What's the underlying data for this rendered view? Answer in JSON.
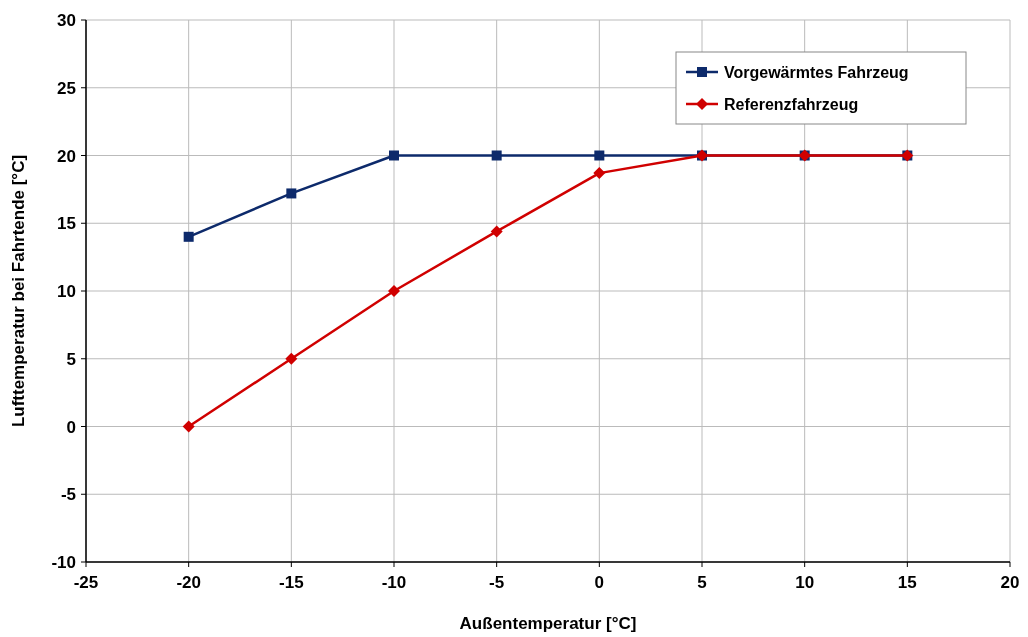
{
  "chart_data": {
    "type": "line",
    "xlabel": "Außentemperatur [°C]",
    "ylabel": "Lufttemperatur bei Fahrtende [°C]",
    "x": [
      -20,
      -15,
      -10,
      -5,
      0,
      5,
      10,
      15
    ],
    "series": [
      {
        "name": "Vorgewärmtes Fahrzeug",
        "color": "#0d2a6b",
        "marker": "square",
        "values": [
          14,
          17.2,
          20,
          20,
          20,
          20,
          20,
          20
        ]
      },
      {
        "name": "Referenzfahrzeug",
        "color": "#d00000",
        "marker": "diamond",
        "values": [
          0,
          5,
          10,
          14.4,
          18.7,
          20,
          20,
          20
        ]
      }
    ],
    "xlim": [
      -25,
      20
    ],
    "xticks": [
      -25,
      -20,
      -15,
      -10,
      -5,
      0,
      5,
      10,
      15,
      20
    ],
    "ylim": [
      -10,
      30
    ],
    "yticks": [
      -10,
      -5,
      0,
      5,
      10,
      15,
      20,
      25,
      30
    ],
    "grid": true,
    "legend": "top right",
    "line_style": "solid"
  }
}
